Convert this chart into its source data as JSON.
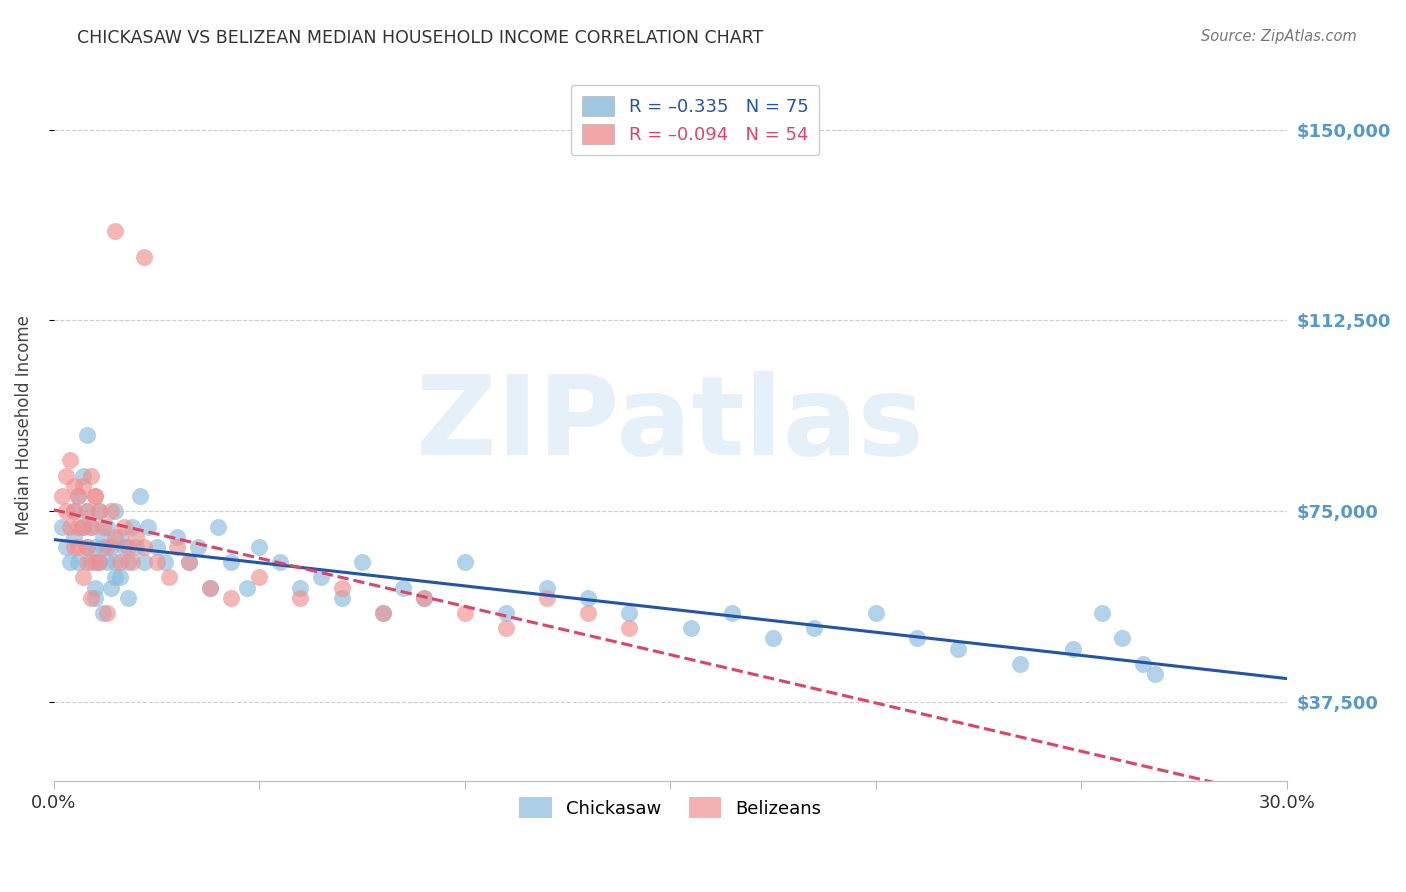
{
  "title": "CHICKASAW VS BELIZEAN MEDIAN HOUSEHOLD INCOME CORRELATION CHART",
  "source": "Source: ZipAtlas.com",
  "ylabel": "Median Household Income",
  "yticks": [
    37500,
    75000,
    112500,
    150000
  ],
  "ytick_labels": [
    "$37,500",
    "$75,000",
    "$112,500",
    "$150,000"
  ],
  "xmin": 0.0,
  "xmax": 0.3,
  "ymin": 22000,
  "ymax": 162000,
  "watermark": "ZIPatlas",
  "chickasaw_color": "#88bbdd",
  "belizean_color": "#f09090",
  "trendline_chickasaw_color": "#2255aa",
  "trendline_belizean_color": "#dd4466",
  "background_color": "#ffffff",
  "grid_color": "#cccccc",
  "chickasaw_x": [
    0.002,
    0.003,
    0.004,
    0.005,
    0.005,
    0.006,
    0.006,
    0.007,
    0.007,
    0.008,
    0.008,
    0.009,
    0.009,
    0.01,
    0.01,
    0.011,
    0.011,
    0.012,
    0.012,
    0.013,
    0.013,
    0.014,
    0.014,
    0.015,
    0.015,
    0.016,
    0.016,
    0.017,
    0.018,
    0.019,
    0.02,
    0.021,
    0.022,
    0.023,
    0.025,
    0.027,
    0.03,
    0.033,
    0.035,
    0.038,
    0.04,
    0.043,
    0.047,
    0.05,
    0.055,
    0.06,
    0.065,
    0.07,
    0.075,
    0.08,
    0.085,
    0.09,
    0.1,
    0.11,
    0.12,
    0.13,
    0.14,
    0.155,
    0.165,
    0.175,
    0.185,
    0.2,
    0.21,
    0.22,
    0.235,
    0.248,
    0.255,
    0.26,
    0.265,
    0.268,
    0.008,
    0.01,
    0.012,
    0.015,
    0.018
  ],
  "chickasaw_y": [
    72000,
    68000,
    65000,
    75000,
    70000,
    78000,
    65000,
    82000,
    72000,
    68000,
    75000,
    65000,
    72000,
    60000,
    68000,
    75000,
    65000,
    70000,
    68000,
    65000,
    72000,
    68000,
    60000,
    75000,
    65000,
    70000,
    62000,
    68000,
    65000,
    72000,
    68000,
    78000,
    65000,
    72000,
    68000,
    65000,
    70000,
    65000,
    68000,
    60000,
    72000,
    65000,
    60000,
    68000,
    65000,
    60000,
    62000,
    58000,
    65000,
    55000,
    60000,
    58000,
    65000,
    55000,
    60000,
    58000,
    55000,
    52000,
    55000,
    50000,
    52000,
    55000,
    50000,
    48000,
    45000,
    48000,
    55000,
    50000,
    45000,
    43000,
    90000,
    58000,
    55000,
    62000,
    58000
  ],
  "belizean_x": [
    0.002,
    0.003,
    0.003,
    0.004,
    0.004,
    0.005,
    0.005,
    0.006,
    0.006,
    0.007,
    0.007,
    0.008,
    0.008,
    0.009,
    0.009,
    0.01,
    0.01,
    0.011,
    0.012,
    0.013,
    0.014,
    0.015,
    0.016,
    0.017,
    0.018,
    0.019,
    0.02,
    0.022,
    0.025,
    0.028,
    0.03,
    0.033,
    0.038,
    0.043,
    0.05,
    0.06,
    0.07,
    0.08,
    0.09,
    0.1,
    0.11,
    0.12,
    0.13,
    0.14,
    0.022,
    0.015,
    0.01,
    0.008,
    0.006,
    0.005,
    0.007,
    0.009,
    0.011,
    0.013
  ],
  "belizean_y": [
    78000,
    82000,
    75000,
    85000,
    72000,
    80000,
    75000,
    68000,
    78000,
    72000,
    80000,
    75000,
    68000,
    82000,
    72000,
    78000,
    65000,
    75000,
    72000,
    68000,
    75000,
    70000,
    65000,
    72000,
    68000,
    65000,
    70000,
    68000,
    65000,
    62000,
    68000,
    65000,
    60000,
    58000,
    62000,
    58000,
    60000,
    55000,
    58000,
    55000,
    52000,
    58000,
    55000,
    52000,
    125000,
    130000,
    78000,
    65000,
    72000,
    68000,
    62000,
    58000,
    65000,
    55000
  ]
}
